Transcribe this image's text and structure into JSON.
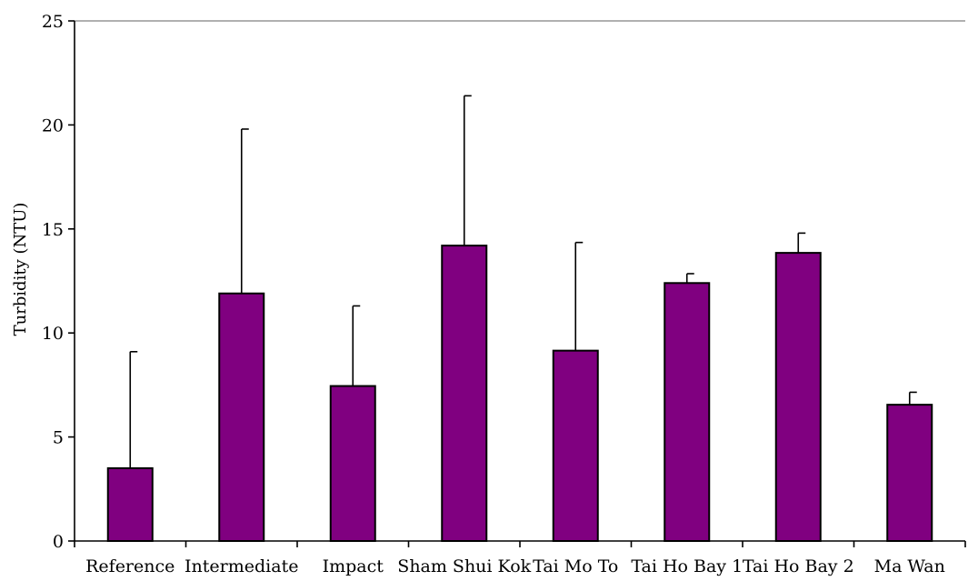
{
  "chart_data": {
    "type": "bar",
    "title": "",
    "xlabel": "",
    "ylabel": "Turbidity (NTU)",
    "ylim": [
      0,
      25
    ],
    "yticks": [
      0,
      5,
      10,
      15,
      20,
      25
    ],
    "ytick_labels": [
      "0",
      "5",
      "10",
      "15",
      "20",
      "25"
    ],
    "grid": false,
    "legend": "none",
    "categories": [
      "Reference",
      "Intermediate",
      "Impact",
      "Sham Shui Kok",
      "Tai Mo To",
      "Tai Ho Bay 1",
      "Tai Ho Bay 2",
      "Ma Wan"
    ],
    "values": [
      3.5,
      11.9,
      7.45,
      14.2,
      9.15,
      12.4,
      13.85,
      6.55
    ],
    "error_upper": [
      5.6,
      7.9,
      3.85,
      7.2,
      5.2,
      0.45,
      0.95,
      0.6
    ],
    "bar_color": "#800080",
    "bar_edge_color": "#000000"
  }
}
